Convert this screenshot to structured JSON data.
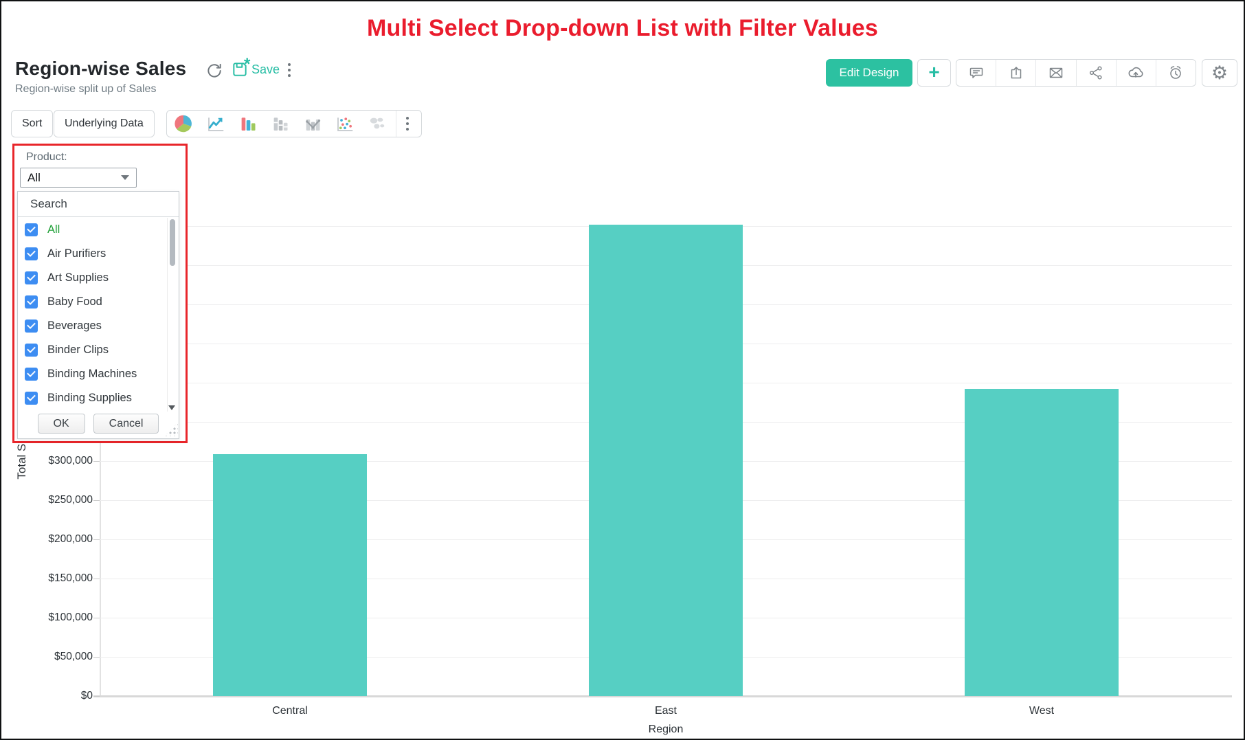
{
  "banner": {
    "title": "Multi Select Drop-down List with Filter Values",
    "color": "#ea1c2d"
  },
  "header": {
    "title": "Region-wise Sales",
    "subtitle": "Region-wise split up of Sales",
    "save_label": "Save",
    "save_unsaved_marker": "*",
    "edit_design_label": "Edit Design",
    "action_icons": [
      "refresh-icon",
      "save-icon",
      "more-menu-icon",
      "add-icon",
      "comments-icon",
      "export-icon",
      "email-icon",
      "share-icon",
      "publish-upload-icon",
      "alert-icon",
      "settings-gear-icon"
    ]
  },
  "toolbar": {
    "sort_label": "Sort",
    "underlying_data_label": "Underlying Data",
    "chart_type_icons": [
      "pie-chart-icon",
      "line-chart-icon",
      "bar-chart-icon",
      "stacked-bar-icon",
      "combo-chart-icon",
      "scatter-chart-icon",
      "map-chart-icon",
      "more-chart-types-icon"
    ]
  },
  "filter": {
    "label": "Product:",
    "selected_value": "All",
    "search_placeholder": "Search",
    "ok_label": "OK",
    "cancel_label": "Cancel",
    "options": [
      {
        "label": "All",
        "checked": true,
        "highlight": true
      },
      {
        "label": "Air Purifiers",
        "checked": true
      },
      {
        "label": "Art Supplies",
        "checked": true
      },
      {
        "label": "Baby Food",
        "checked": true
      },
      {
        "label": "Beverages",
        "checked": true
      },
      {
        "label": "Binder Clips",
        "checked": true
      },
      {
        "label": "Binding Machines",
        "checked": true
      },
      {
        "label": "Binding Supplies",
        "checked": true
      }
    ]
  },
  "chart_data": {
    "type": "bar",
    "categories": [
      "Central",
      "East",
      "West"
    ],
    "values": [
      309000,
      602000,
      392000
    ],
    "xlabel": "Region",
    "ylabel": "Total Sales",
    "ylim": [
      0,
      650000
    ],
    "ytick_interval": 50000,
    "ytick_max": 600000,
    "ytick_prefix": "$",
    "bar_color": "#56cfc3",
    "grid": true,
    "legend": "none"
  }
}
